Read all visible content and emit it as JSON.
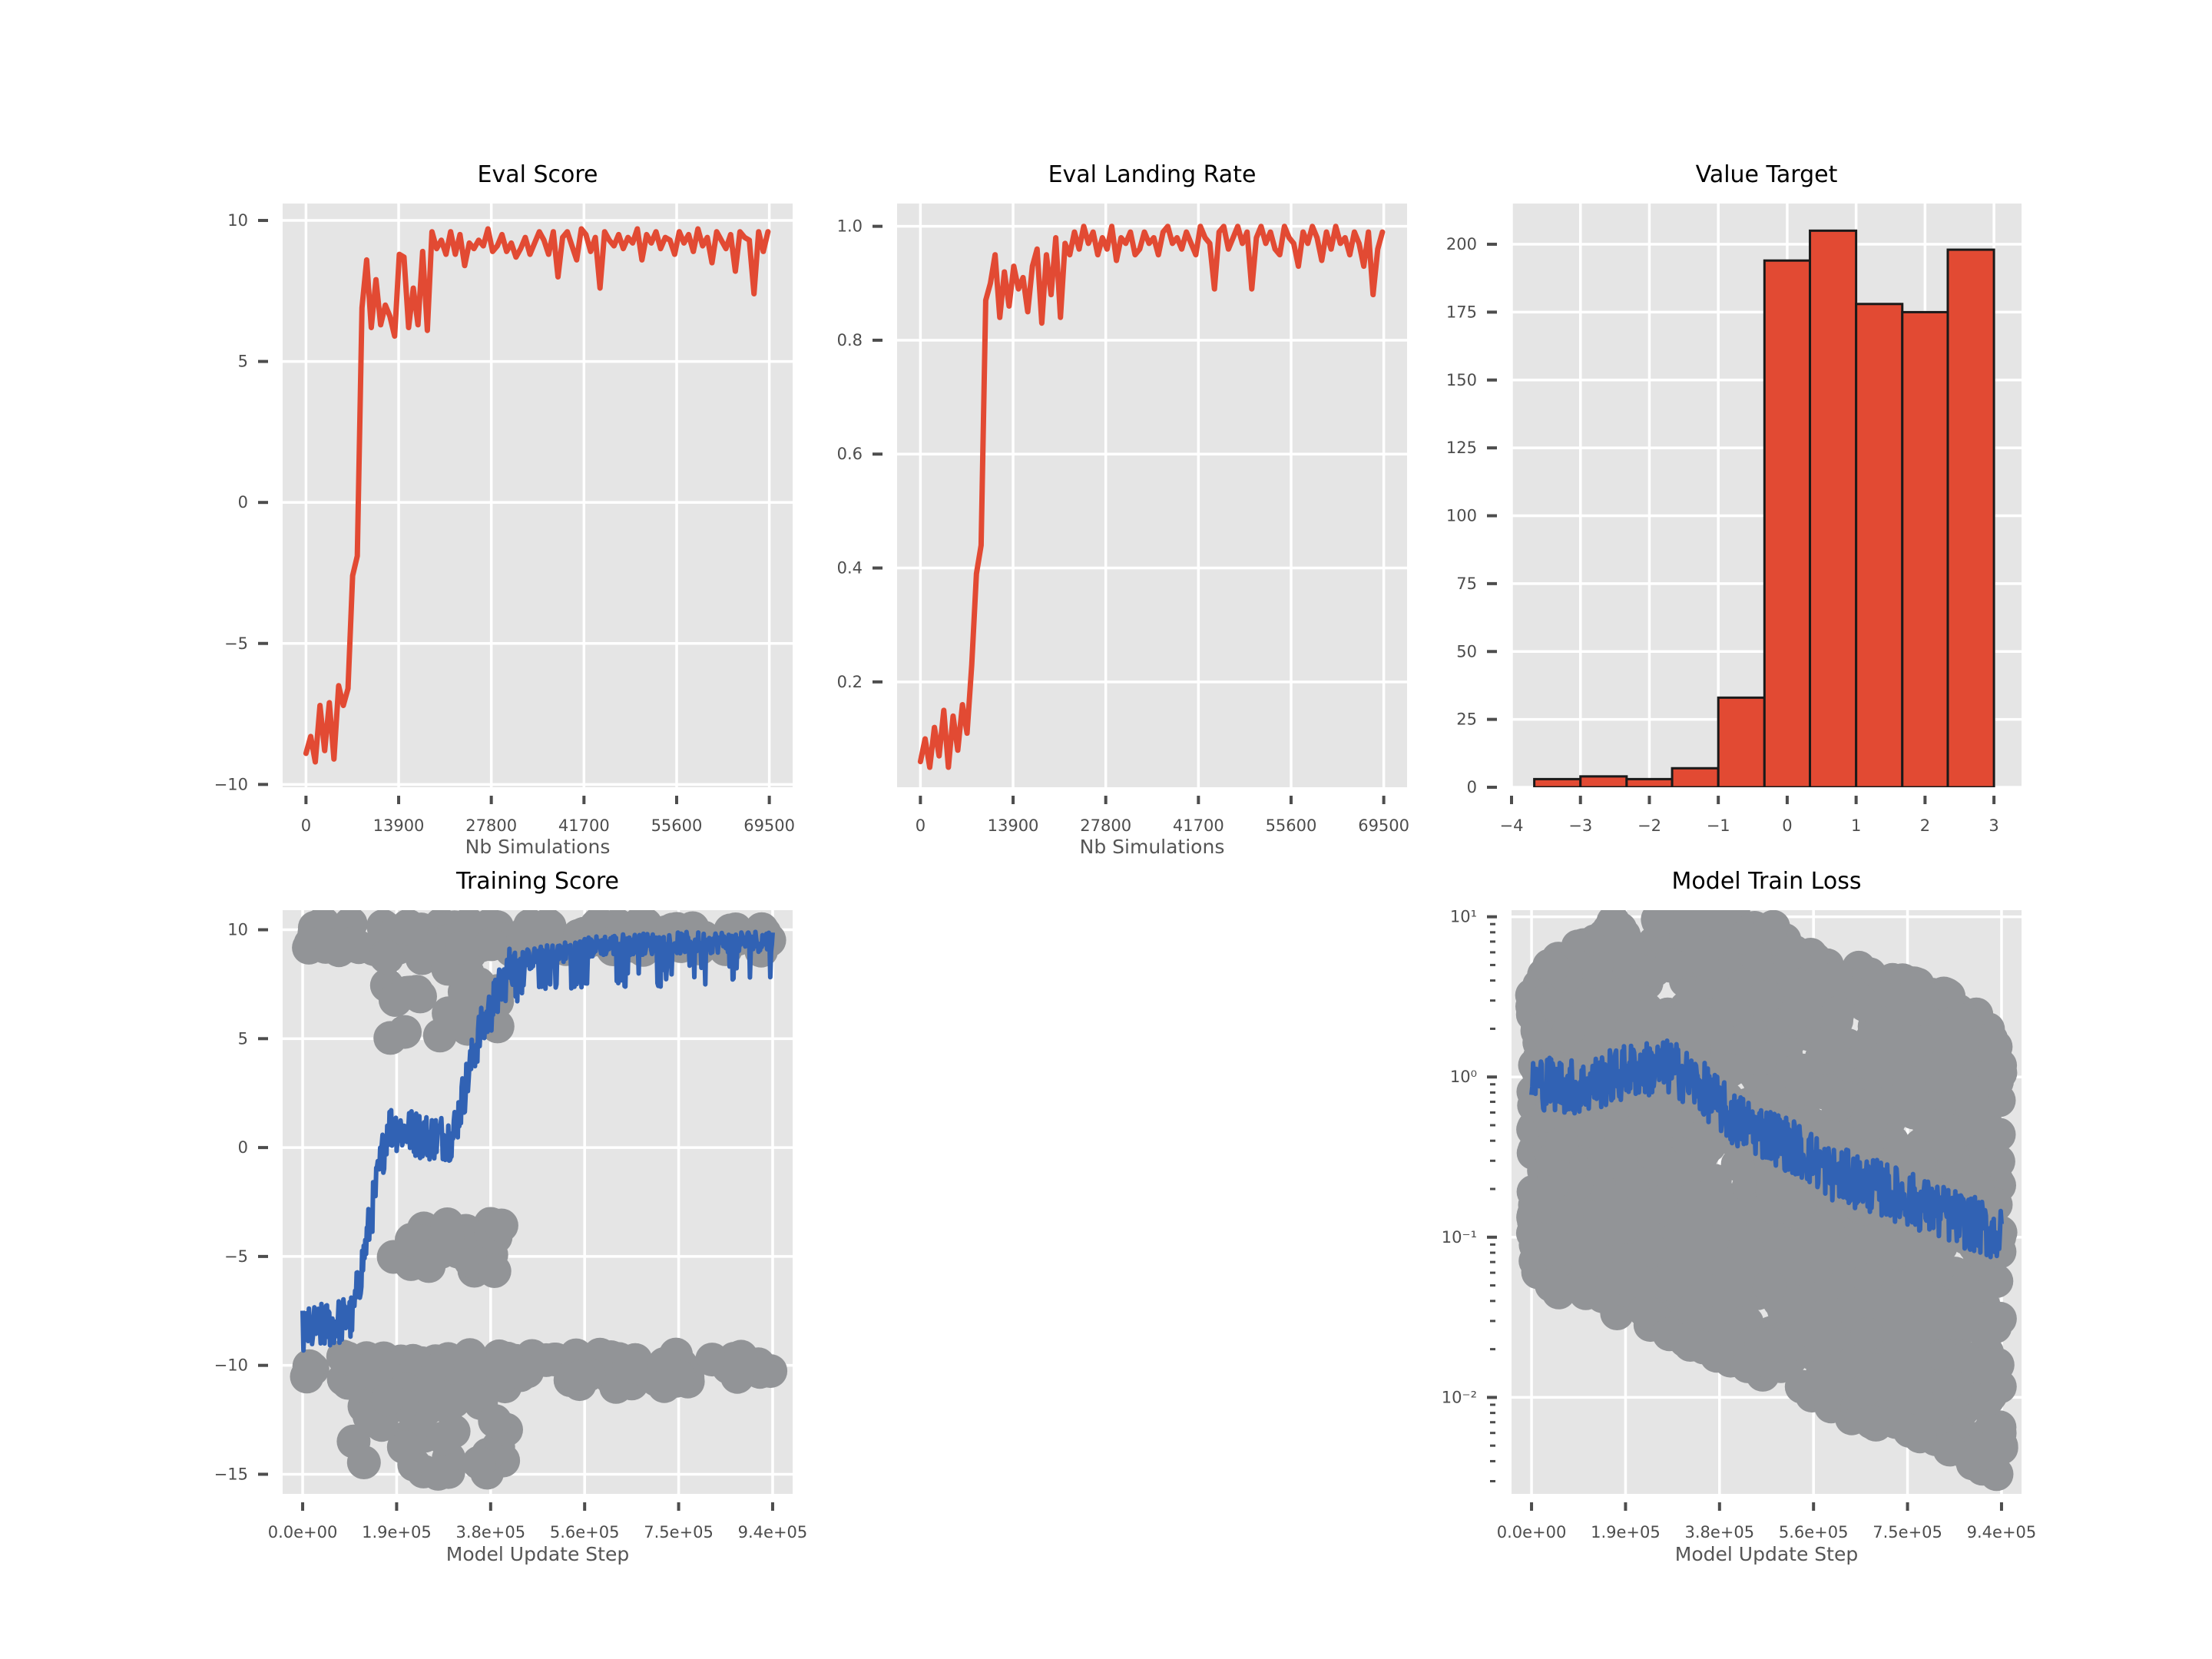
{
  "colors": {
    "panel_bg": "#e5e5e5",
    "grid": "#ffffff",
    "red": "#e24a33",
    "blue": "#3162b4",
    "gray": "#929497",
    "edge": "#1a1a1a"
  },
  "chart_data": [
    {
      "id": "eval_score",
      "type": "line",
      "title": "Eval Score",
      "xlabel": "Nb Simulations",
      "ylabel": "",
      "xlim": [
        -3500,
        73000
      ],
      "ylim": [
        -10.1,
        10.6
      ],
      "xticks": [
        0,
        13900,
        27800,
        41700,
        55600,
        69500
      ],
      "xtick_labels": [
        "0",
        "13900",
        "27800",
        "41700",
        "55600",
        "69500"
      ],
      "yticks": [
        -10,
        -5,
        0,
        5,
        10
      ],
      "ytick_labels": [
        "−10",
        "−5",
        "0",
        "5",
        "10"
      ],
      "grid": true,
      "series": [
        {
          "color": "#e24a33",
          "x": [
            0,
            700,
            1400,
            2100,
            2800,
            3500,
            4200,
            4900,
            5600,
            6300,
            7000,
            7700,
            8400,
            9100,
            9800,
            10500,
            11200,
            11900,
            12600,
            13300,
            14000,
            14700,
            15400,
            16100,
            16800,
            17500,
            18200,
            18900,
            19600,
            20300,
            21000,
            21700,
            22400,
            23100,
            23800,
            24500,
            25200,
            25900,
            26600,
            27300,
            28000,
            28700,
            29400,
            30100,
            30800,
            31500,
            32200,
            32900,
            33600,
            34300,
            35000,
            35700,
            36400,
            37100,
            37800,
            38500,
            39200,
            39900,
            40600,
            41300,
            42000,
            42700,
            43400,
            44100,
            44800,
            45500,
            46200,
            46900,
            47600,
            48300,
            49000,
            49700,
            50400,
            51100,
            51800,
            52500,
            53200,
            53900,
            54600,
            55300,
            56000,
            56700,
            57400,
            58100,
            58800,
            59500,
            60200,
            60900,
            61600,
            62300,
            63000,
            63700,
            64400,
            65100,
            65800,
            66500,
            67200,
            67900,
            68600,
            69300
          ],
          "y": [
            -8.9,
            -8.3,
            -9.2,
            -7.2,
            -8.8,
            -7.1,
            -9.1,
            -6.5,
            -7.2,
            -6.6,
            -2.6,
            -1.9,
            6.9,
            8.6,
            6.2,
            7.9,
            6.3,
            7.0,
            6.6,
            5.9,
            8.8,
            8.7,
            6.2,
            7.6,
            6.3,
            8.9,
            6.1,
            9.6,
            9.0,
            9.3,
            8.8,
            9.6,
            8.8,
            9.5,
            8.4,
            9.2,
            9.0,
            9.3,
            9.1,
            9.7,
            8.9,
            9.1,
            9.5,
            8.9,
            9.2,
            8.7,
            9.0,
            9.4,
            8.8,
            9.2,
            9.6,
            9.3,
            8.8,
            9.6,
            8.0,
            9.4,
            9.6,
            9.1,
            8.6,
            9.7,
            9.5,
            8.9,
            9.4,
            7.6,
            9.6,
            9.3,
            9.1,
            9.5,
            9.0,
            9.4,
            9.2,
            9.7,
            8.6,
            9.5,
            9.2,
            9.6,
            9.0,
            9.4,
            9.3,
            8.8,
            9.6,
            9.2,
            9.5,
            8.9,
            9.7,
            9.1,
            9.4,
            8.5,
            9.6,
            9.3,
            9.0,
            9.5,
            8.2,
            9.6,
            9.4,
            9.3,
            7.4,
            9.6,
            8.9,
            9.6
          ]
        }
      ]
    },
    {
      "id": "eval_landing_rate",
      "type": "line",
      "title": "Eval Landing Rate",
      "xlabel": "Nb Simulations",
      "ylabel": "",
      "xlim": [
        -3500,
        73000
      ],
      "ylim": [
        0.015,
        1.04
      ],
      "xticks": [
        0,
        13900,
        27800,
        41700,
        55600,
        69500
      ],
      "xtick_labels": [
        "0",
        "13900",
        "27800",
        "41700",
        "55600",
        "69500"
      ],
      "yticks": [
        0.2,
        0.4,
        0.6,
        0.8,
        1.0
      ],
      "ytick_labels": [
        "0.2",
        "0.4",
        "0.6",
        "0.8",
        "1.0"
      ],
      "grid": true,
      "series": [
        {
          "color": "#e24a33",
          "x": [
            0,
            700,
            1400,
            2100,
            2800,
            3500,
            4200,
            4900,
            5600,
            6300,
            7000,
            7700,
            8400,
            9100,
            9800,
            10500,
            11200,
            11900,
            12600,
            13300,
            14000,
            14700,
            15400,
            16100,
            16800,
            17500,
            18200,
            18900,
            19600,
            20300,
            21000,
            21700,
            22400,
            23100,
            23800,
            24500,
            25200,
            25900,
            26600,
            27300,
            28000,
            28700,
            29400,
            30100,
            30800,
            31500,
            32200,
            32900,
            33600,
            34300,
            35000,
            35700,
            36400,
            37100,
            37800,
            38500,
            39200,
            39900,
            40600,
            41300,
            42000,
            42700,
            43400,
            44100,
            44800,
            45500,
            46200,
            46900,
            47600,
            48300,
            49000,
            49700,
            50400,
            51100,
            51800,
            52500,
            53200,
            53900,
            54600,
            55300,
            56000,
            56700,
            57400,
            58100,
            58800,
            59500,
            60200,
            60900,
            61600,
            62300,
            63000,
            63700,
            64400,
            65100,
            65800,
            66500,
            67200,
            67900,
            68600,
            69300
          ],
          "y": [
            0.06,
            0.1,
            0.05,
            0.12,
            0.07,
            0.15,
            0.05,
            0.14,
            0.08,
            0.16,
            0.11,
            0.23,
            0.39,
            0.44,
            0.87,
            0.9,
            0.95,
            0.84,
            0.92,
            0.86,
            0.93,
            0.89,
            0.91,
            0.85,
            0.93,
            0.96,
            0.83,
            0.95,
            0.88,
            0.98,
            0.84,
            0.97,
            0.95,
            0.99,
            0.96,
            1.0,
            0.97,
            0.99,
            0.95,
            0.98,
            0.96,
            1.0,
            0.94,
            0.98,
            0.97,
            0.99,
            0.95,
            0.96,
            0.99,
            0.97,
            0.98,
            0.95,
            0.99,
            1.0,
            0.97,
            0.98,
            0.96,
            0.99,
            0.97,
            0.95,
            1.0,
            0.98,
            0.97,
            0.89,
            0.99,
            1.0,
            0.96,
            0.98,
            1.0,
            0.97,
            0.99,
            0.89,
            0.98,
            1.0,
            0.97,
            0.99,
            0.96,
            0.95,
            1.0,
            0.98,
            0.97,
            0.93,
            0.99,
            0.97,
            1.0,
            0.98,
            0.94,
            0.99,
            0.96,
            1.0,
            0.97,
            0.98,
            0.95,
            0.99,
            0.97,
            0.93,
            0.99,
            0.88,
            0.96,
            0.99
          ]
        }
      ]
    },
    {
      "id": "value_target",
      "type": "bar",
      "title": "Value Target",
      "xlabel": "",
      "ylabel": "",
      "xlim": [
        -4.0,
        3.4
      ],
      "ylim": [
        0,
        215
      ],
      "xticks": [
        -4,
        -3,
        -2,
        -1,
        0,
        1,
        2,
        3
      ],
      "xtick_labels": [
        "−4",
        "−3",
        "−2",
        "−1",
        "0",
        "1",
        "2",
        "3"
      ],
      "yticks": [
        0,
        25,
        50,
        75,
        100,
        125,
        150,
        175,
        200
      ],
      "ytick_labels": [
        "0",
        "25",
        "50",
        "75",
        "100",
        "125",
        "150",
        "175",
        "200"
      ],
      "grid": true,
      "bin_edges": [
        -3.67,
        -3.0,
        -2.33,
        -1.67,
        -1.0,
        -0.33,
        0.33,
        1.0,
        1.67,
        2.33,
        3.0
      ],
      "values": [
        3,
        4,
        3,
        7,
        33,
        194,
        205,
        178,
        175,
        198
      ],
      "color": "#e24a33",
      "edgecolor": "#1a1a1a"
    },
    {
      "id": "training_score",
      "type": "scatter",
      "title": "Training Score",
      "xlabel": "Model Update Step",
      "ylabel": "",
      "xlim": [
        -40000,
        980000
      ],
      "ylim": [
        -15.9,
        10.9
      ],
      "xticks": [
        0,
        188000,
        376000,
        564000,
        752000,
        940000
      ],
      "xtick_labels": [
        "0.0e+00",
        "1.9e+05",
        "3.8e+05",
        "5.6e+05",
        "7.5e+05",
        "9.4e+05"
      ],
      "yticks": [
        -15,
        -10,
        -5,
        0,
        5,
        10
      ],
      "ytick_labels": [
        "−15",
        "−10",
        "−5",
        "0",
        "5",
        "10"
      ],
      "grid": true,
      "scatter_color": "#929497",
      "line_color": "#3162b4",
      "scatter_clusters": [
        {
          "x_range": [
            0,
            940000
          ],
          "y_range": [
            -11.0,
            -9.5
          ]
        },
        {
          "x_range": [
            0,
            940000
          ],
          "y_range": [
            9.0,
            10.3
          ]
        },
        {
          "x_range": [
            130000,
            400000
          ],
          "y_range": [
            5.0,
            9.5
          ]
        },
        {
          "x_range": [
            100000,
            420000
          ],
          "y_range": [
            -15.0,
            -11.0
          ]
        },
        {
          "x_range": [
            180000,
            400000
          ],
          "y_range": [
            -5.7,
            -3.5
          ]
        }
      ],
      "line_trend": [
        {
          "x": 0,
          "y": -8.5
        },
        {
          "x": 100000,
          "y": -7.8
        },
        {
          "x": 130000,
          "y": -4.0
        },
        {
          "x": 170000,
          "y": 1.0
        },
        {
          "x": 250000,
          "y": 0.5
        },
        {
          "x": 300000,
          "y": 0.5
        },
        {
          "x": 350000,
          "y": 5.0
        },
        {
          "x": 420000,
          "y": 8.5
        },
        {
          "x": 600000,
          "y": 9.3
        },
        {
          "x": 940000,
          "y": 9.5
        }
      ]
    },
    {
      "id": "model_train_loss",
      "type": "scatter",
      "title": "Model Train Loss",
      "xlabel": "Model Update Step",
      "ylabel": "",
      "yscale": "log",
      "xlim": [
        -40000,
        980000
      ],
      "ylim": [
        0.0025,
        11
      ],
      "xticks": [
        0,
        188000,
        376000,
        564000,
        752000,
        940000
      ],
      "xtick_labels": [
        "0.0e+00",
        "1.9e+05",
        "3.8e+05",
        "5.6e+05",
        "7.5e+05",
        "9.4e+05"
      ],
      "yticks": [
        0.01,
        0.1,
        1,
        10
      ],
      "ytick_labels": [
        "10⁻²",
        "10⁻¹",
        "10⁰",
        "10¹"
      ],
      "grid": true,
      "scatter_color": "#929497",
      "line_color": "#3162b4",
      "scatter_envelope": [
        {
          "x": 0,
          "lo": 0.05,
          "hi": 4.0
        },
        {
          "x": 200000,
          "lo": 0.03,
          "hi": 11.0
        },
        {
          "x": 400000,
          "lo": 0.015,
          "hi": 11.0
        },
        {
          "x": 600000,
          "lo": 0.008,
          "hi": 6.0
        },
        {
          "x": 800000,
          "lo": 0.005,
          "hi": 3.5
        },
        {
          "x": 940000,
          "lo": 0.003,
          "hi": 2.5
        }
      ],
      "line_trend": [
        {
          "x": 0,
          "y": 0.95
        },
        {
          "x": 100000,
          "y": 0.85
        },
        {
          "x": 200000,
          "y": 1.1
        },
        {
          "x": 280000,
          "y": 1.15
        },
        {
          "x": 400000,
          "y": 0.55
        },
        {
          "x": 600000,
          "y": 0.25
        },
        {
          "x": 800000,
          "y": 0.15
        },
        {
          "x": 940000,
          "y": 0.1
        }
      ]
    }
  ]
}
